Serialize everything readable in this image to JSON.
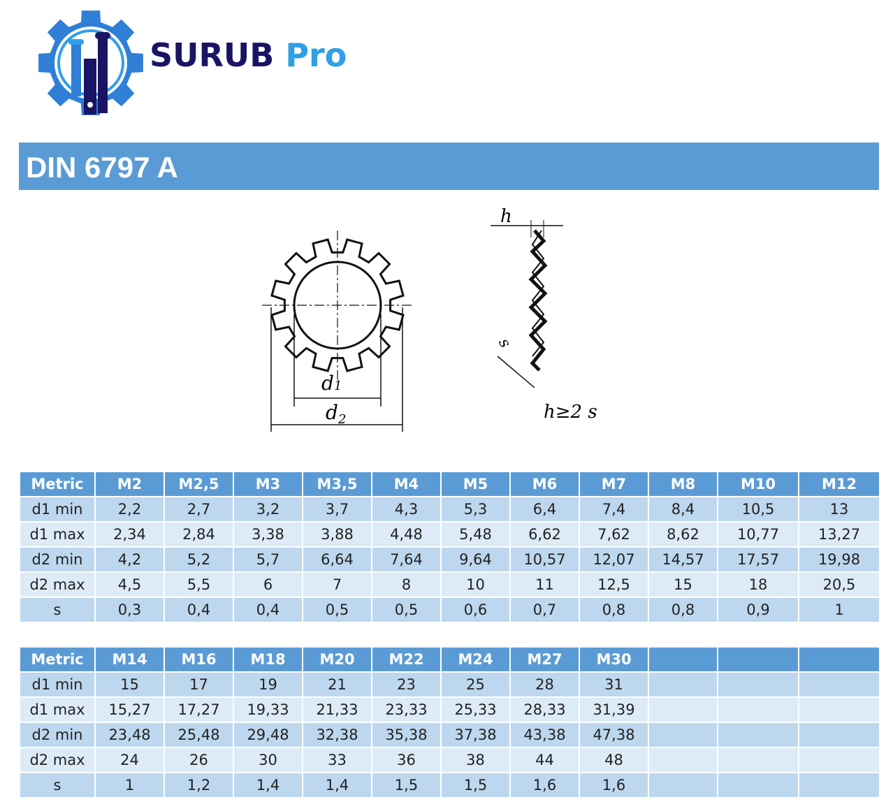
{
  "logo": {
    "text_primary": "SURUB",
    "text_secondary": "Pro",
    "colors": {
      "dark": "#1a1464",
      "light": "#2f9fe6"
    }
  },
  "title": "DIN 6797 A",
  "diagram": {
    "labels": {
      "d1": "d",
      "d1_sub": "1",
      "d2": "d",
      "d2_sub": "2",
      "h": "h",
      "s": "s",
      "formula": "h≥2 s"
    }
  },
  "colors": {
    "header": "#5b9bd5",
    "row_odd": "#bdd7ee",
    "row_even": "#ddebf7"
  },
  "tables": [
    {
      "headers": [
        "Metric",
        "M2",
        "M2,5",
        "M3",
        "M3,5",
        "M4",
        "M5",
        "M6",
        "M7",
        "M8",
        "M10",
        "M12"
      ],
      "rows": [
        [
          "d1 min",
          "2,2",
          "2,7",
          "3,2",
          "3,7",
          "4,3",
          "5,3",
          "6,4",
          "7,4",
          "8,4",
          "10,5",
          "13"
        ],
        [
          "d1 max",
          "2,34",
          "2,84",
          "3,38",
          "3,88",
          "4,48",
          "5,48",
          "6,62",
          "7,62",
          "8,62",
          "10,77",
          "13,27"
        ],
        [
          "d2 min",
          "4,2",
          "5,2",
          "5,7",
          "6,64",
          "7,64",
          "9,64",
          "10,57",
          "12,07",
          "14,57",
          "17,57",
          "19,98"
        ],
        [
          "d2 max",
          "4,5",
          "5,5",
          "6",
          "7",
          "8",
          "10",
          "11",
          "12,5",
          "15",
          "18",
          "20,5"
        ],
        [
          "s",
          "0,3",
          "0,4",
          "0,4",
          "0,5",
          "0,5",
          "0,6",
          "0,7",
          "0,8",
          "0,8",
          "0,9",
          "1"
        ]
      ]
    },
    {
      "headers": [
        "Metric",
        "M14",
        "M16",
        "M18",
        "M20",
        "M22",
        "M24",
        "M27",
        "M30",
        "",
        "",
        ""
      ],
      "rows": [
        [
          "d1 min",
          "15",
          "17",
          "19",
          "21",
          "23",
          "25",
          "28",
          "31",
          "",
          "",
          ""
        ],
        [
          "d1 max",
          "15,27",
          "17,27",
          "19,33",
          "21,33",
          "23,33",
          "25,33",
          "28,33",
          "31,39",
          "",
          "",
          ""
        ],
        [
          "d2 min",
          "23,48",
          "25,48",
          "29,48",
          "32,38",
          "35,38",
          "37,38",
          "43,38",
          "47,38",
          "",
          "",
          ""
        ],
        [
          "d2 max",
          "24",
          "26",
          "30",
          "33",
          "36",
          "38",
          "44",
          "48",
          "",
          "",
          ""
        ],
        [
          "s",
          "1",
          "1,2",
          "1,4",
          "1,4",
          "1,5",
          "1,5",
          "1,6",
          "1,6",
          "",
          "",
          ""
        ]
      ]
    }
  ]
}
